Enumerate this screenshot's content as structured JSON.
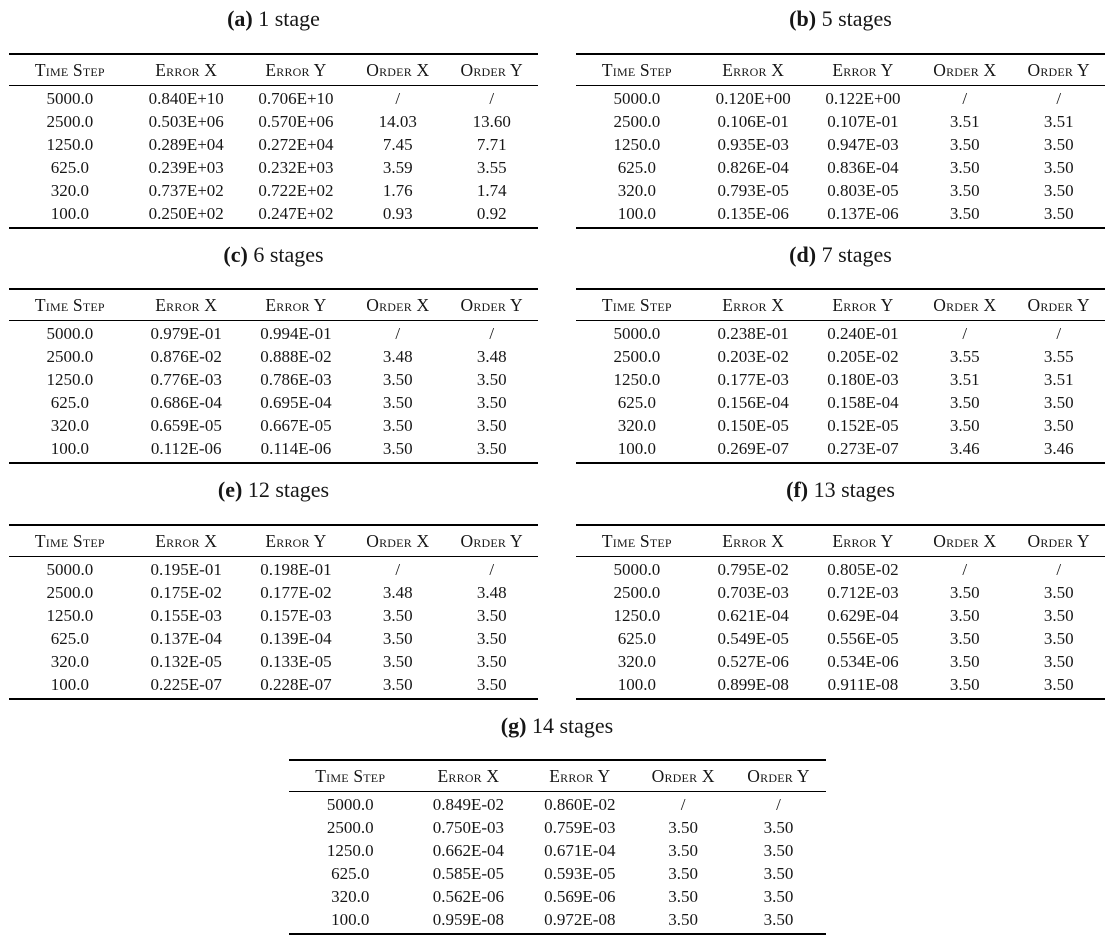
{
  "page": {
    "background": "#ffffff",
    "text_color": "#161616",
    "rule_color": "#000000"
  },
  "columns": [
    "Time Step",
    "Error X",
    "Error Y",
    "Order X",
    "Order Y"
  ],
  "tables": [
    {
      "caption_label": "(a)",
      "caption_text": "1 stage",
      "rows": [
        [
          "5000.0",
          "0.840E+10",
          "0.706E+10",
          "/",
          "/"
        ],
        [
          "2500.0",
          "0.503E+06",
          "0.570E+06",
          "14.03",
          "13.60"
        ],
        [
          "1250.0",
          "0.289E+04",
          "0.272E+04",
          "7.45",
          "7.71"
        ],
        [
          "625.0",
          "0.239E+03",
          "0.232E+03",
          "3.59",
          "3.55"
        ],
        [
          "320.0",
          "0.737E+02",
          "0.722E+02",
          "1.76",
          "1.74"
        ],
        [
          "100.0",
          "0.250E+02",
          "0.247E+02",
          "0.93",
          "0.92"
        ]
      ]
    },
    {
      "caption_label": "(b)",
      "caption_text": "5 stages",
      "rows": [
        [
          "5000.0",
          "0.120E+00",
          "0.122E+00",
          "/",
          "/"
        ],
        [
          "2500.0",
          "0.106E-01",
          "0.107E-01",
          "3.51",
          "3.51"
        ],
        [
          "1250.0",
          "0.935E-03",
          "0.947E-03",
          "3.50",
          "3.50"
        ],
        [
          "625.0",
          "0.826E-04",
          "0.836E-04",
          "3.50",
          "3.50"
        ],
        [
          "320.0",
          "0.793E-05",
          "0.803E-05",
          "3.50",
          "3.50"
        ],
        [
          "100.0",
          "0.135E-06",
          "0.137E-06",
          "3.50",
          "3.50"
        ]
      ]
    },
    {
      "caption_label": "(c)",
      "caption_text": "6 stages",
      "rows": [
        [
          "5000.0",
          "0.979E-01",
          "0.994E-01",
          "/",
          "/"
        ],
        [
          "2500.0",
          "0.876E-02",
          "0.888E-02",
          "3.48",
          "3.48"
        ],
        [
          "1250.0",
          "0.776E-03",
          "0.786E-03",
          "3.50",
          "3.50"
        ],
        [
          "625.0",
          "0.686E-04",
          "0.695E-04",
          "3.50",
          "3.50"
        ],
        [
          "320.0",
          "0.659E-05",
          "0.667E-05",
          "3.50",
          "3.50"
        ],
        [
          "100.0",
          "0.112E-06",
          "0.114E-06",
          "3.50",
          "3.50"
        ]
      ]
    },
    {
      "caption_label": "(d)",
      "caption_text": "7 stages",
      "rows": [
        [
          "5000.0",
          "0.238E-01",
          "0.240E-01",
          "/",
          "/"
        ],
        [
          "2500.0",
          "0.203E-02",
          "0.205E-02",
          "3.55",
          "3.55"
        ],
        [
          "1250.0",
          "0.177E-03",
          "0.180E-03",
          "3.51",
          "3.51"
        ],
        [
          "625.0",
          "0.156E-04",
          "0.158E-04",
          "3.50",
          "3.50"
        ],
        [
          "320.0",
          "0.150E-05",
          "0.152E-05",
          "3.50",
          "3.50"
        ],
        [
          "100.0",
          "0.269E-07",
          "0.273E-07",
          "3.46",
          "3.46"
        ]
      ]
    },
    {
      "caption_label": "(e)",
      "caption_text": "12 stages",
      "rows": [
        [
          "5000.0",
          "0.195E-01",
          "0.198E-01",
          "/",
          "/"
        ],
        [
          "2500.0",
          "0.175E-02",
          "0.177E-02",
          "3.48",
          "3.48"
        ],
        [
          "1250.0",
          "0.155E-03",
          "0.157E-03",
          "3.50",
          "3.50"
        ],
        [
          "625.0",
          "0.137E-04",
          "0.139E-04",
          "3.50",
          "3.50"
        ],
        [
          "320.0",
          "0.132E-05",
          "0.133E-05",
          "3.50",
          "3.50"
        ],
        [
          "100.0",
          "0.225E-07",
          "0.228E-07",
          "3.50",
          "3.50"
        ]
      ]
    },
    {
      "caption_label": "(f)",
      "caption_text": "13 stages",
      "rows": [
        [
          "5000.0",
          "0.795E-02",
          "0.805E-02",
          "/",
          "/"
        ],
        [
          "2500.0",
          "0.703E-03",
          "0.712E-03",
          "3.50",
          "3.50"
        ],
        [
          "1250.0",
          "0.621E-04",
          "0.629E-04",
          "3.50",
          "3.50"
        ],
        [
          "625.0",
          "0.549E-05",
          "0.556E-05",
          "3.50",
          "3.50"
        ],
        [
          "320.0",
          "0.527E-06",
          "0.534E-06",
          "3.50",
          "3.50"
        ],
        [
          "100.0",
          "0.899E-08",
          "0.911E-08",
          "3.50",
          "3.50"
        ]
      ]
    },
    {
      "caption_label": "(g)",
      "caption_text": "14 stages",
      "rows": [
        [
          "5000.0",
          "0.849E-02",
          "0.860E-02",
          "/",
          "/"
        ],
        [
          "2500.0",
          "0.750E-03",
          "0.759E-03",
          "3.50",
          "3.50"
        ],
        [
          "1250.0",
          "0.662E-04",
          "0.671E-04",
          "3.50",
          "3.50"
        ],
        [
          "625.0",
          "0.585E-05",
          "0.593E-05",
          "3.50",
          "3.50"
        ],
        [
          "320.0",
          "0.562E-06",
          "0.569E-06",
          "3.50",
          "3.50"
        ],
        [
          "100.0",
          "0.959E-08",
          "0.972E-08",
          "3.50",
          "3.50"
        ]
      ]
    }
  ]
}
